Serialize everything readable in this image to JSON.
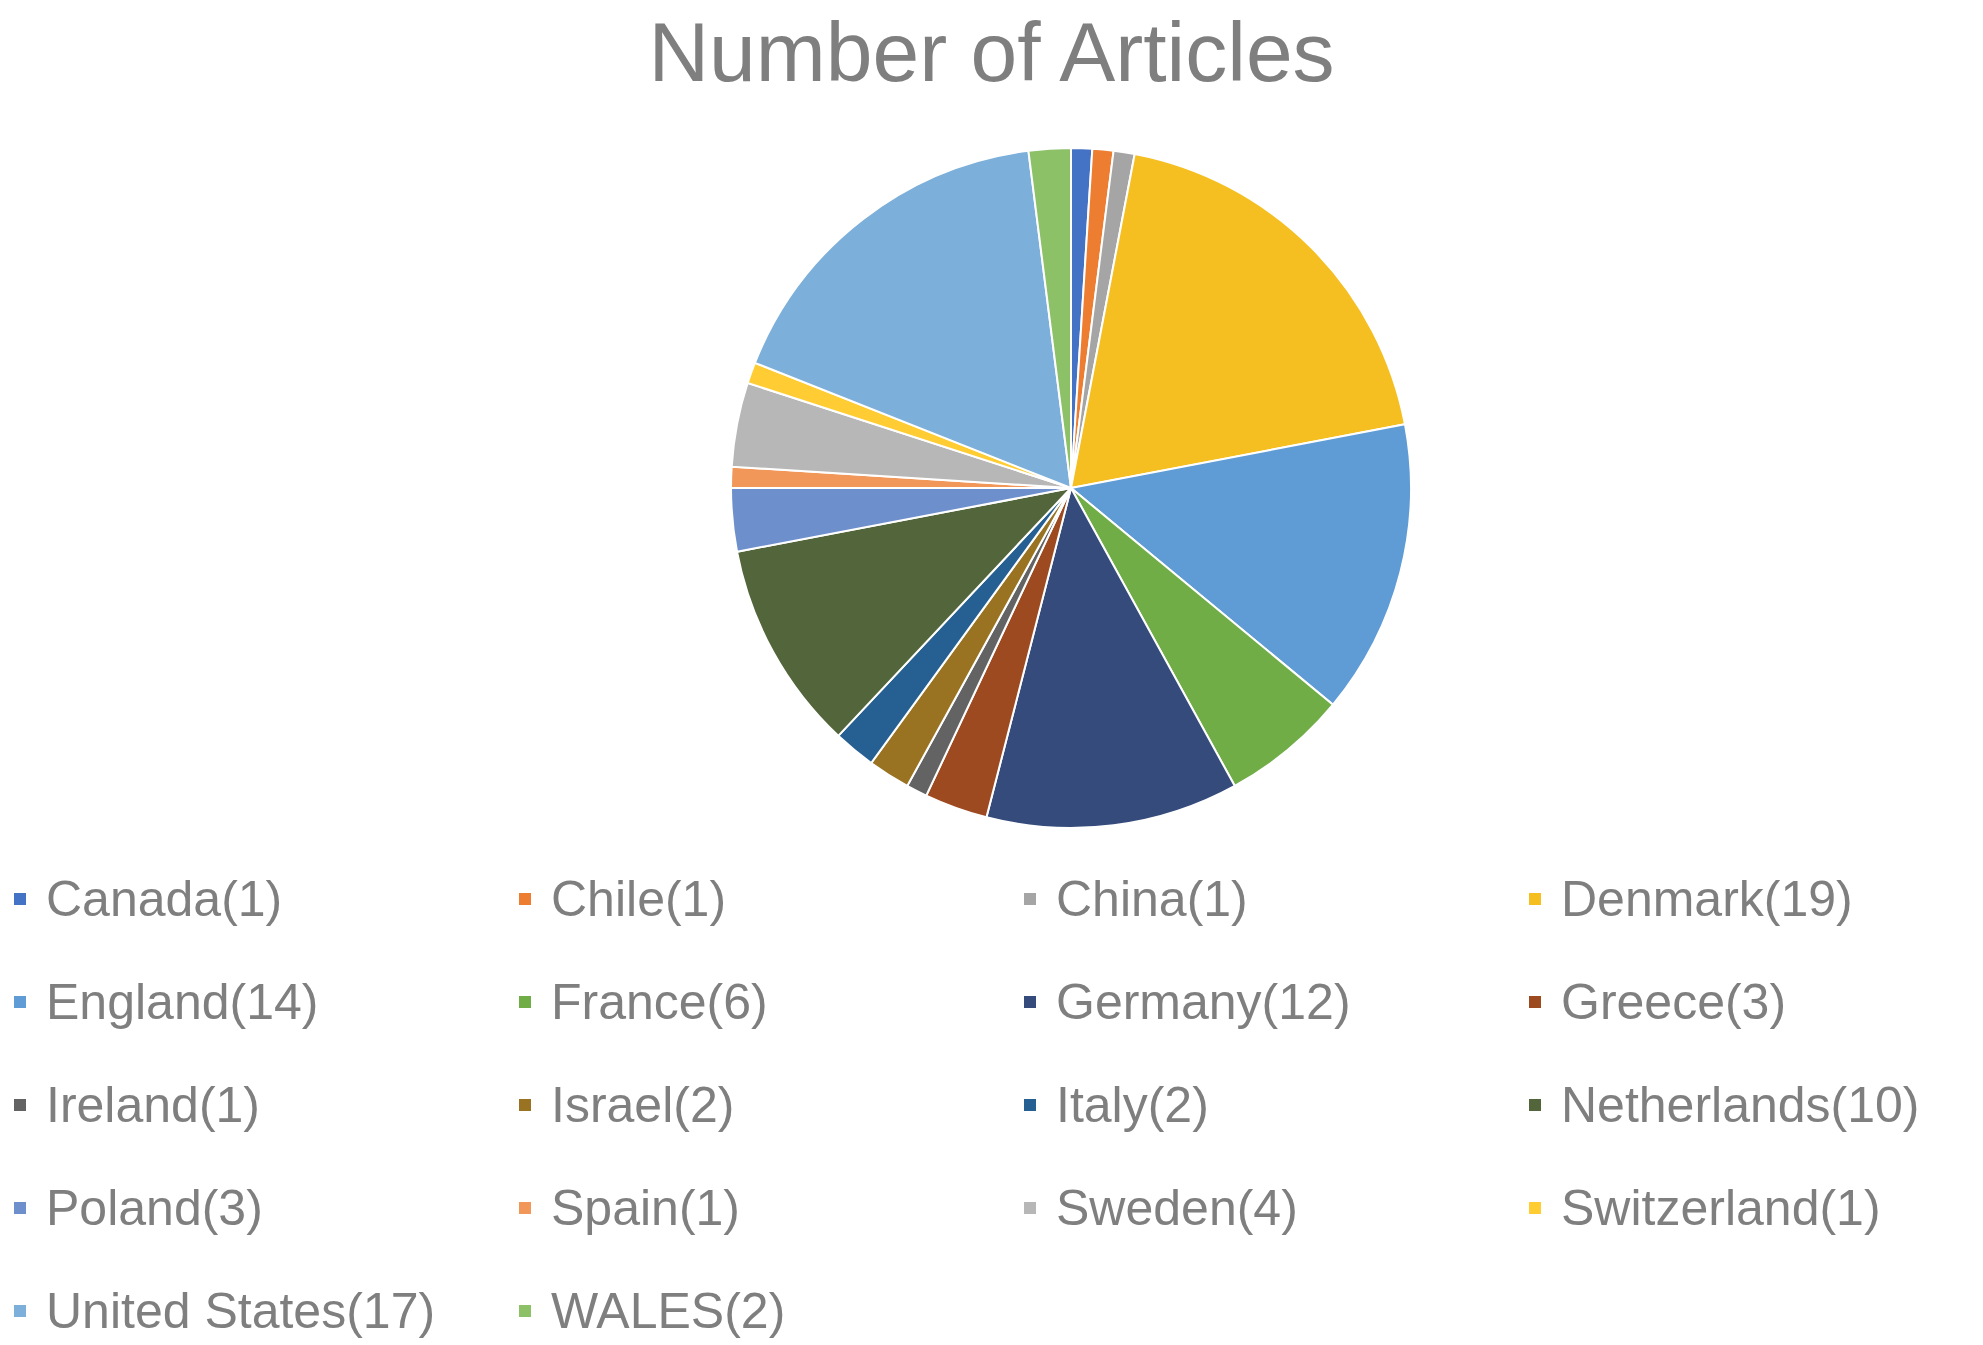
{
  "chart_data": {
    "type": "pie",
    "title": "Number of Articles",
    "categories": [
      "Canada(1)",
      "Chile(1)",
      "China(1)",
      "Denmark(19)",
      "England(14)",
      "France(6)",
      "Germany(12)",
      "Greece(3)",
      "Ireland(1)",
      "Israel(2)",
      "Italy(2)",
      "Netherlands(10)",
      "Poland(3)",
      "Spain(1)",
      "Sweden(4)",
      "Switzerland(1)",
      "United States(17)",
      "WALES(2)"
    ],
    "values": [
      1,
      1,
      1,
      19,
      14,
      6,
      12,
      3,
      1,
      2,
      2,
      10,
      3,
      1,
      4,
      1,
      17,
      2
    ],
    "colors": [
      "#4472c4",
      "#ed7d31",
      "#a5a5a5",
      "#f5bf22",
      "#5f9bd4",
      "#70ad47",
      "#344b7b",
      "#9e4a20",
      "#636363",
      "#997321",
      "#265f92",
      "#53653a",
      "#6d8fcc",
      "#f1975a",
      "#b7b7b7",
      "#ffcd33",
      "#7cafd9",
      "#8cc168"
    ],
    "legend": "bottom"
  }
}
